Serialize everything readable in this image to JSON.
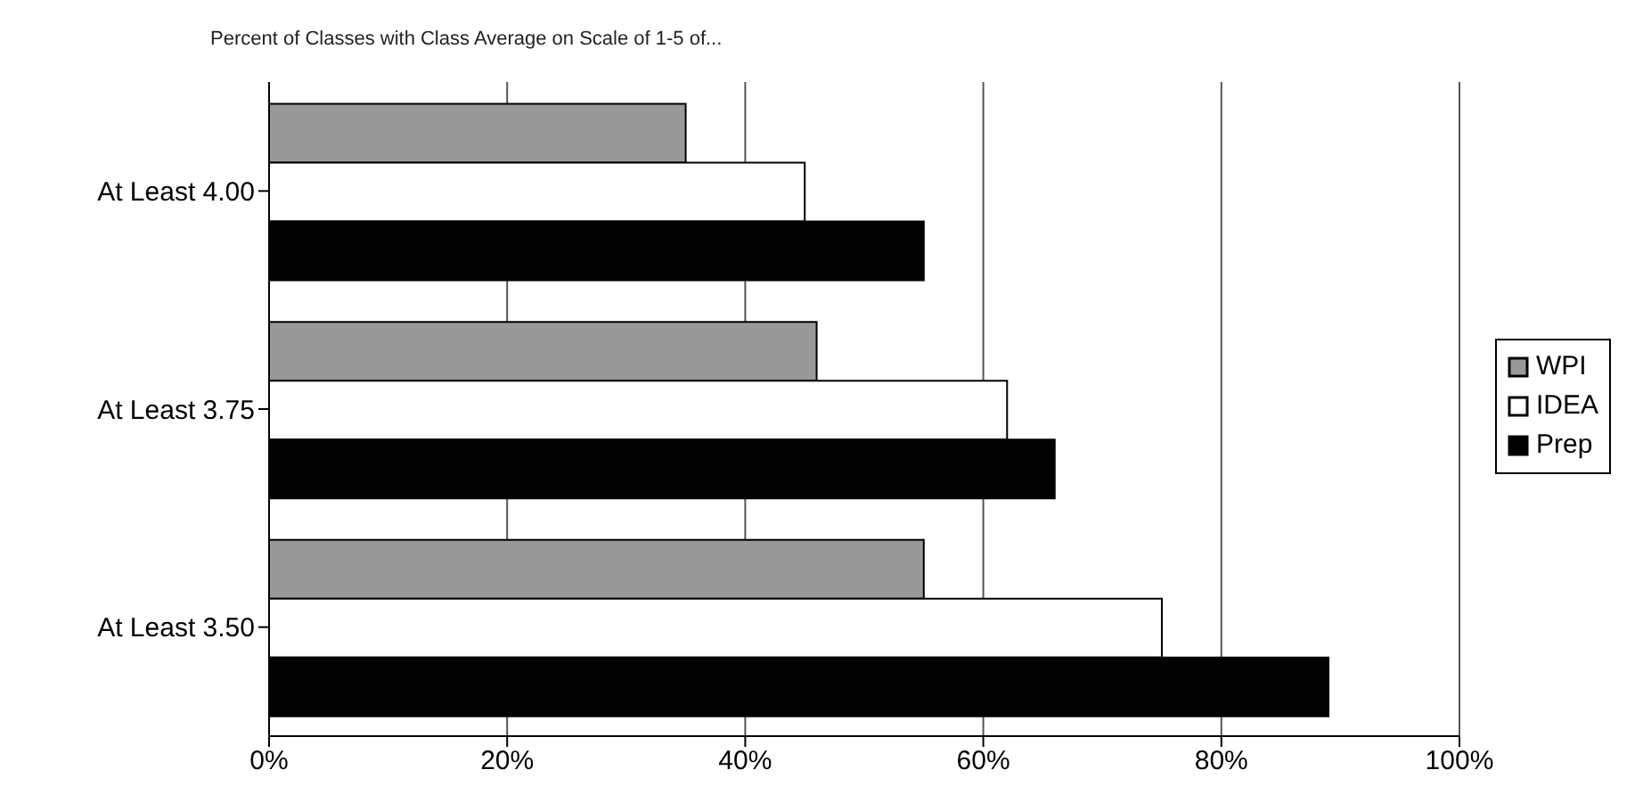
{
  "chart_data": {
    "type": "bar",
    "orientation": "horizontal",
    "title": "Percent of Classes with Class Average on Scale of 1-5 of...",
    "categories": [
      "At Least 4.00",
      "At Least 3.75",
      "At Least 3.50"
    ],
    "series": [
      {
        "name": "WPI",
        "color": "#999999",
        "values": [
          35,
          46,
          55
        ]
      },
      {
        "name": "IDEA",
        "color": "#ffffff",
        "values": [
          45,
          62,
          75
        ]
      },
      {
        "name": "Prep",
        "color": "#000000",
        "values": [
          55,
          66,
          89
        ]
      }
    ],
    "xlim": [
      0,
      100
    ],
    "xticks": [
      {
        "value": 0,
        "label": "0%"
      },
      {
        "value": 20,
        "label": "20%"
      },
      {
        "value": 40,
        "label": "40%"
      },
      {
        "value": 60,
        "label": "60%"
      },
      {
        "value": 80,
        "label": "80%"
      },
      {
        "value": 100,
        "label": "100%"
      }
    ],
    "grid": "x",
    "legend": "right"
  }
}
